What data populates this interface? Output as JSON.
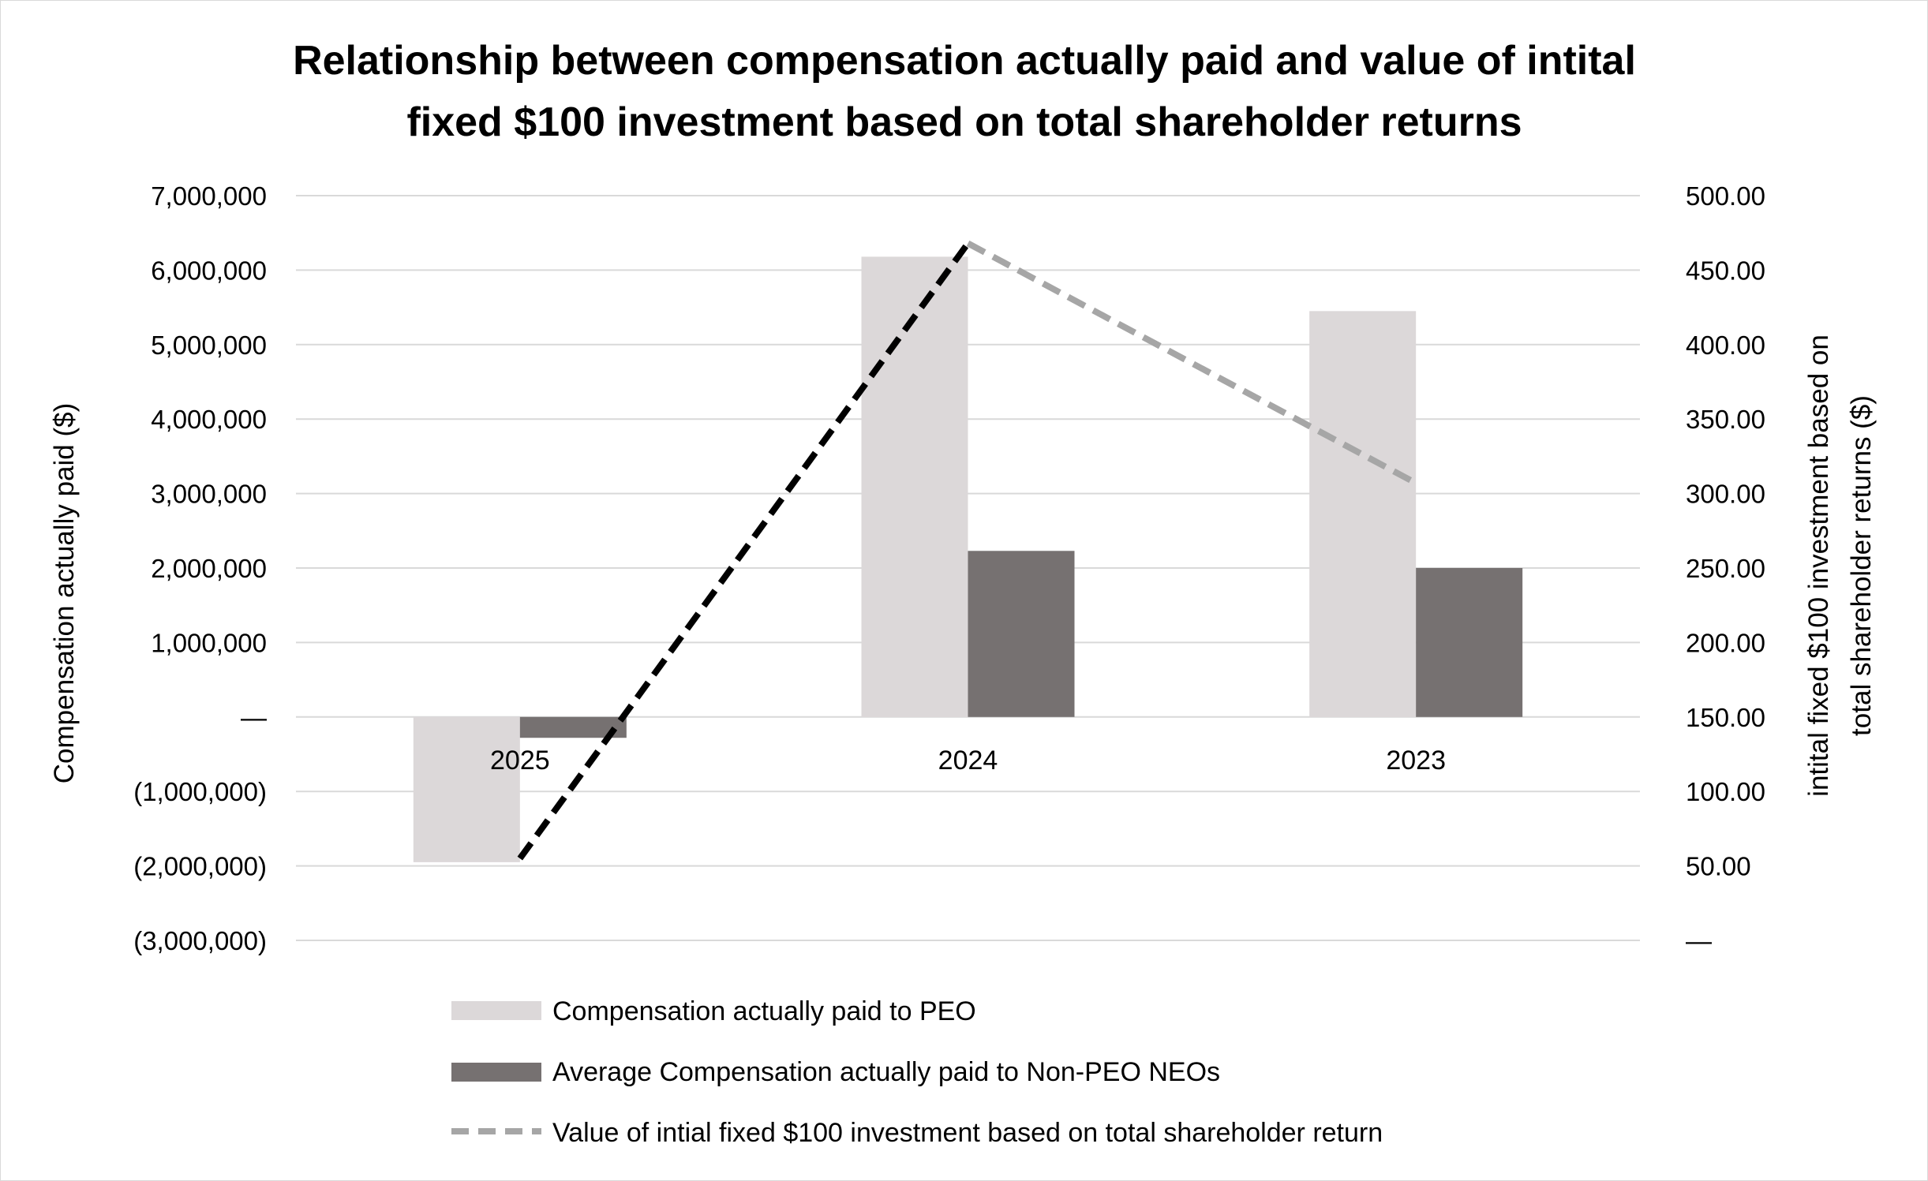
{
  "chart_data": {
    "type": "bar",
    "title_lines": [
      "Relationship between compensation actually paid and value of intital",
      "fixed $100 investment based on total shareholder returns"
    ],
    "categories": [
      "2025",
      "2024",
      "2023"
    ],
    "series": [
      {
        "name": "Compensation actually paid to PEO",
        "type": "bar",
        "axis": "left",
        "color": "#dcd8d9",
        "values": [
          -1950000,
          6180000,
          5450000
        ]
      },
      {
        "name": "Average Compensation actually paid to Non-PEO NEOs",
        "type": "bar",
        "axis": "left",
        "color": "#767171",
        "values": [
          -280000,
          2230000,
          2000000
        ]
      },
      {
        "name": "Value of intial fixed $100 investment based on total shareholder return",
        "type": "line",
        "style": "dashed",
        "axis": "right",
        "color": "#a6a6a6",
        "segment_colors": [
          "#000000",
          "#a6a6a6"
        ],
        "values": [
          55,
          468,
          307
        ]
      }
    ],
    "y_left": {
      "label": "Compensation actually paid ($)",
      "range": [
        -3000000,
        7000000
      ],
      "ticks": [
        {
          "value": 7000000,
          "label": "7,000,000"
        },
        {
          "value": 6000000,
          "label": "6,000,000"
        },
        {
          "value": 5000000,
          "label": "5,000,000"
        },
        {
          "value": 4000000,
          "label": "4,000,000"
        },
        {
          "value": 3000000,
          "label": "3,000,000"
        },
        {
          "value": 2000000,
          "label": "2,000,000"
        },
        {
          "value": 1000000,
          "label": "1,000,000"
        },
        {
          "value": 0,
          "label": "—"
        },
        {
          "value": -1000000,
          "label": "(1,000,000)"
        },
        {
          "value": -2000000,
          "label": "(2,000,000)"
        },
        {
          "value": -3000000,
          "label": "(3,000,000)"
        }
      ]
    },
    "y_right": {
      "label_lines": [
        "intital fixed $100 investment based on",
        "total shareholder returns ($)"
      ],
      "range": [
        0,
        500
      ],
      "ticks": [
        {
          "value": 500,
          "label": "500.00"
        },
        {
          "value": 450,
          "label": "450.00"
        },
        {
          "value": 400,
          "label": "400.00"
        },
        {
          "value": 350,
          "label": "350.00"
        },
        {
          "value": 300,
          "label": "300.00"
        },
        {
          "value": 250,
          "label": "250.00"
        },
        {
          "value": 200,
          "label": "200.00"
        },
        {
          "value": 150,
          "label": "150.00"
        },
        {
          "value": 100,
          "label": "100.00"
        },
        {
          "value": 50,
          "label": "50.00"
        },
        {
          "value": 0,
          "label": "—"
        }
      ]
    },
    "grid": true,
    "legend_position": "bottom",
    "gridline_color": "#d9d9d9"
  }
}
